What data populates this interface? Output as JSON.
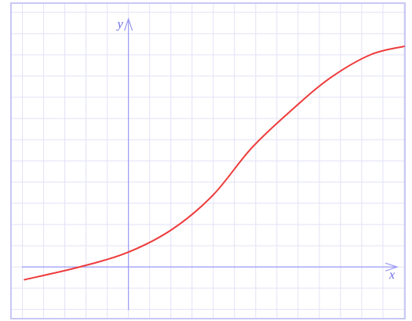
{
  "chart_data": {
    "type": "line",
    "xlabel": "x",
    "ylabel": "y",
    "x": [
      -4.9,
      -2.3,
      0,
      2.1,
      4.0,
      5.8,
      7.7,
      9.5,
      11.4,
      13.0
    ],
    "series": [
      {
        "color": "#ee3b3b",
        "values": [
          -0.6,
          0.0,
          0.7,
          1.8,
          3.4,
          5.6,
          7.4,
          8.9,
          10.0,
          10.4
        ]
      }
    ],
    "xlim": [
      -5.5,
      13
    ],
    "ylim": [
      -2.4,
      12.4
    ],
    "grid": true,
    "grid_color": "#e2e2f7",
    "axis_color": "#9a9af5",
    "border_color": "#c8c8f5"
  }
}
